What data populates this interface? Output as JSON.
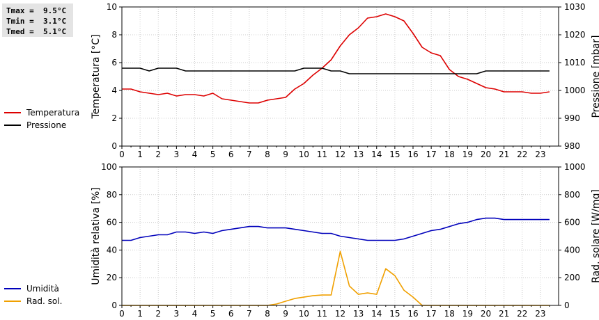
{
  "stats": [
    {
      "label": "Tmax",
      "value": "9.5°C"
    },
    {
      "label": "Tmin",
      "value": "3.1°C"
    },
    {
      "label": "Tmed",
      "value": "5.1°C"
    }
  ],
  "legend_top": [
    {
      "name": "Temperatura",
      "color": "#dd0000"
    },
    {
      "name": "Pressione",
      "color": "#000000"
    }
  ],
  "legend_bottom": [
    {
      "name": "Umidità",
      "color": "#0000bb"
    },
    {
      "name": "Rad. sol.",
      "color": "#f0a000"
    }
  ],
  "chart_data": [
    {
      "type": "line",
      "ylabel": "Temperatura [°C]",
      "y2label": "Pressione [mbar]",
      "xlim": [
        0,
        24
      ],
      "ylim": [
        0,
        10
      ],
      "y2lim": [
        980,
        1030
      ],
      "xticks": [
        0,
        1,
        2,
        3,
        4,
        5,
        6,
        7,
        8,
        9,
        10,
        11,
        12,
        13,
        14,
        15,
        16,
        17,
        18,
        19,
        20,
        21,
        22,
        23
      ],
      "yticks": [
        0,
        2,
        4,
        6,
        8,
        10
      ],
      "y2ticks": [
        980,
        990,
        1000,
        1010,
        1020,
        1030
      ],
      "grid": true,
      "series": [
        {
          "name": "Temperatura",
          "axis": "left",
          "color": "#dd0000",
          "x": [
            0,
            0.5,
            1,
            1.5,
            2,
            2.5,
            3,
            3.5,
            4,
            4.5,
            5,
            5.5,
            6,
            6.5,
            7,
            7.5,
            8,
            8.5,
            9,
            9.5,
            10,
            10.5,
            11,
            11.5,
            12,
            12.5,
            13,
            13.5,
            14,
            14.5,
            15,
            15.5,
            16,
            16.5,
            17,
            17.5,
            18,
            18.5,
            19,
            19.5,
            20,
            20.5,
            21,
            21.5,
            22,
            22.5,
            23,
            23.5
          ],
          "y": [
            4.1,
            4.1,
            3.9,
            3.8,
            3.7,
            3.8,
            3.6,
            3.7,
            3.7,
            3.6,
            3.8,
            3.4,
            3.3,
            3.2,
            3.1,
            3.1,
            3.3,
            3.4,
            3.5,
            4.1,
            4.5,
            5.1,
            5.6,
            6.2,
            7.2,
            8.0,
            8.5,
            9.2,
            9.3,
            9.5,
            9.3,
            9.0,
            8.1,
            7.1,
            6.7,
            6.5,
            5.5,
            5.0,
            4.8,
            4.5,
            4.2,
            4.1,
            3.9,
            3.9,
            3.9,
            3.8,
            3.8,
            3.9
          ]
        },
        {
          "name": "Pressione",
          "axis": "right",
          "color": "#000000",
          "x": [
            0,
            1,
            1.5,
            2,
            3,
            3.5,
            4,
            9.5,
            10,
            11,
            11.5,
            12,
            12.5,
            13,
            19.5,
            20,
            23.5
          ],
          "y": [
            1008,
            1008,
            1007,
            1008,
            1008,
            1007,
            1007,
            1007,
            1008,
            1008,
            1007,
            1007,
            1006,
            1006,
            1006,
            1007,
            1007
          ]
        }
      ]
    },
    {
      "type": "line",
      "ylabel": "Umidità relativa [%]",
      "y2label": "Rad. solare [W/mq]",
      "xlim": [
        0,
        24
      ],
      "ylim": [
        0,
        100
      ],
      "y2lim": [
        0,
        1000
      ],
      "xticks": [
        0,
        1,
        2,
        3,
        4,
        5,
        6,
        7,
        8,
        9,
        10,
        11,
        12,
        13,
        14,
        15,
        16,
        17,
        18,
        19,
        20,
        21,
        22,
        23
      ],
      "yticks": [
        0,
        20,
        40,
        60,
        80,
        100
      ],
      "y2ticks": [
        0,
        200,
        400,
        600,
        800,
        1000
      ],
      "grid": true,
      "series": [
        {
          "name": "Umidità",
          "axis": "left",
          "color": "#0000bb",
          "x": [
            0,
            0.5,
            1,
            1.5,
            2,
            2.5,
            3,
            3.5,
            4,
            4.5,
            5,
            5.5,
            6,
            6.5,
            7,
            7.5,
            8,
            8.5,
            9,
            9.5,
            10,
            10.5,
            11,
            11.5,
            12,
            12.5,
            13,
            13.5,
            14,
            14.5,
            15,
            15.5,
            16,
            16.5,
            17,
            17.5,
            18,
            18.5,
            19,
            19.5,
            20,
            20.5,
            21,
            21.5,
            22,
            22.5,
            23,
            23.5
          ],
          "y": [
            47,
            47,
            49,
            50,
            51,
            51,
            53,
            53,
            52,
            53,
            52,
            54,
            55,
            56,
            57,
            57,
            56,
            56,
            56,
            55,
            54,
            53,
            52,
            52,
            50,
            49,
            48,
            47,
            47,
            47,
            47,
            48,
            50,
            52,
            54,
            55,
            57,
            59,
            60,
            62,
            63,
            63,
            62,
            62,
            62,
            62,
            62,
            62
          ]
        },
        {
          "name": "Rad. sol.",
          "axis": "right",
          "color": "#f0a000",
          "x": [
            0,
            8,
            8.5,
            9,
            9.5,
            10,
            10.5,
            11,
            11.5,
            12,
            12.5,
            13,
            13.5,
            14,
            14.5,
            15,
            15.5,
            16,
            16.5,
            23.5
          ],
          "y": [
            0,
            0,
            10,
            30,
            50,
            60,
            70,
            75,
            75,
            390,
            140,
            80,
            90,
            80,
            265,
            215,
            110,
            60,
            0,
            0
          ]
        }
      ]
    }
  ]
}
